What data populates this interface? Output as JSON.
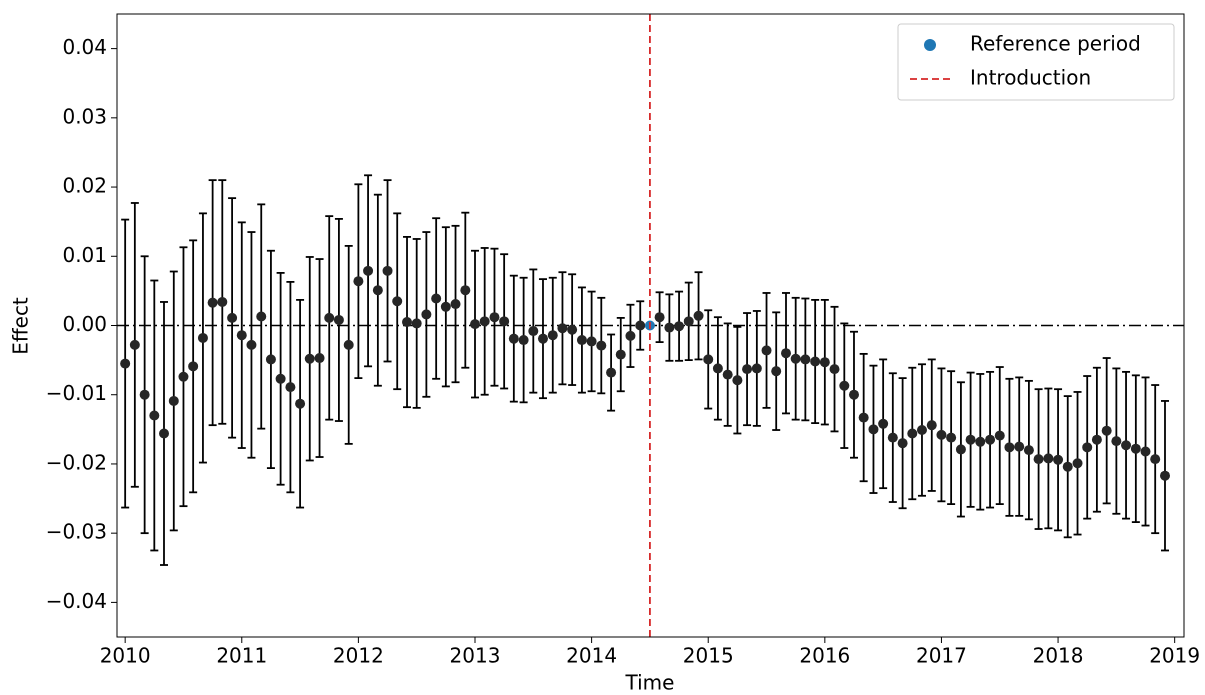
{
  "chart_data": {
    "type": "errorbar",
    "x_label": "Time",
    "y_label": "Effect",
    "xlim": [
      2009.93,
      2019.08
    ],
    "ylim": [
      -0.045,
      0.045
    ],
    "xticks": [
      2010,
      2011,
      2012,
      2013,
      2014,
      2015,
      2016,
      2017,
      2018,
      2019
    ],
    "yticks": [
      {
        "value": -0.04,
        "label": "−0.04"
      },
      {
        "value": -0.03,
        "label": "−0.03"
      },
      {
        "value": -0.02,
        "label": "−0.02"
      },
      {
        "value": -0.01,
        "label": "−0.01"
      },
      {
        "value": 0,
        "label": "0.00"
      },
      {
        "value": 0.01,
        "label": "0.01"
      },
      {
        "value": 0.02,
        "label": "0.02"
      },
      {
        "value": 0.03,
        "label": "0.03"
      },
      {
        "value": 0.04,
        "label": "0.04"
      }
    ],
    "legend_position": "upper right",
    "x": [
      2010.0,
      2010.083,
      2010.167,
      2010.25,
      2010.333,
      2010.417,
      2010.5,
      2010.583,
      2010.667,
      2010.75,
      2010.833,
      2010.917,
      2011.0,
      2011.083,
      2011.167,
      2011.25,
      2011.333,
      2011.417,
      2011.5,
      2011.583,
      2011.667,
      2011.75,
      2011.833,
      2011.917,
      2012.0,
      2012.083,
      2012.167,
      2012.25,
      2012.333,
      2012.417,
      2012.5,
      2012.583,
      2012.667,
      2012.75,
      2012.833,
      2012.917,
      2013.0,
      2013.083,
      2013.167,
      2013.25,
      2013.333,
      2013.417,
      2013.5,
      2013.583,
      2013.667,
      2013.75,
      2013.833,
      2013.917,
      2014.0,
      2014.083,
      2014.167,
      2014.25,
      2014.333,
      2014.417,
      2014.5,
      2014.583,
      2014.667,
      2014.75,
      2014.833,
      2014.917,
      2015.0,
      2015.083,
      2015.167,
      2015.25,
      2015.333,
      2015.417,
      2015.5,
      2015.583,
      2015.667,
      2015.75,
      2015.833,
      2015.917,
      2016.0,
      2016.083,
      2016.167,
      2016.25,
      2016.333,
      2016.417,
      2016.5,
      2016.583,
      2016.667,
      2016.75,
      2016.833,
      2016.917,
      2017.0,
      2017.083,
      2017.167,
      2017.25,
      2017.333,
      2017.417,
      2017.5,
      2017.583,
      2017.667,
      2017.75,
      2017.833,
      2017.917,
      2018.0,
      2018.083,
      2018.167,
      2018.25,
      2018.333,
      2018.417,
      2018.5,
      2018.583,
      2018.667,
      2018.75,
      2018.833,
      2018.917
    ],
    "series": [
      {
        "color": "#262626",
        "values": [
          -0.0055,
          -0.0028,
          -0.01,
          -0.013,
          -0.0156,
          -0.0109,
          -0.0074,
          -0.0059,
          -0.0018,
          0.0033,
          0.0034,
          0.0011,
          -0.0014,
          -0.0028,
          0.0013,
          -0.0049,
          -0.0077,
          -0.0089,
          -0.0113,
          -0.0048,
          -0.0047,
          0.0011,
          0.0008,
          -0.0028,
          0.0064,
          0.0079,
          0.0051,
          0.0079,
          0.0035,
          0.0005,
          0.0003,
          0.0016,
          0.0039,
          0.0027,
          0.0031,
          0.0051,
          0.0002,
          0.0006,
          0.0012,
          0.0006,
          -0.0019,
          -0.0021,
          -0.0008,
          -0.0019,
          -0.0014,
          -0.0004,
          -0.0006,
          -0.0021,
          -0.0023,
          -0.0029,
          -0.0068,
          -0.0042,
          -0.0015,
          0.0,
          null,
          0.0012,
          -0.0003,
          -0.0001,
          0.0006,
          0.0014,
          -0.0049,
          -0.0062,
          -0.0071,
          -0.0079,
          -0.0063,
          -0.0062,
          -0.0036,
          -0.0066,
          -0.004,
          -0.0048,
          -0.0049,
          -0.0052,
          -0.0053,
          -0.0063,
          -0.0087,
          -0.01,
          -0.0133,
          -0.015,
          -0.0142,
          -0.0162,
          -0.017,
          -0.0156,
          -0.0151,
          -0.0144,
          -0.0158,
          -0.0162,
          -0.0179,
          -0.0165,
          -0.0168,
          -0.0165,
          -0.0159,
          -0.0176,
          -0.0175,
          -0.018,
          -0.0193,
          -0.0192,
          -0.0194,
          -0.0204,
          -0.0199,
          -0.0176,
          -0.0165,
          -0.0152,
          -0.0167,
          -0.0173,
          -0.0178,
          -0.0182,
          -0.0193,
          -0.0217
        ],
        "errors": [
          0.0208,
          0.0205,
          0.02,
          0.0195,
          0.019,
          0.0187,
          0.0187,
          0.0182,
          0.018,
          0.0177,
          0.0176,
          0.0173,
          0.0163,
          0.0163,
          0.0162,
          0.0157,
          0.0153,
          0.0152,
          0.015,
          0.0147,
          0.0143,
          0.0147,
          0.0146,
          0.0143,
          0.014,
          0.0138,
          0.0138,
          0.0131,
          0.0127,
          0.0123,
          0.0122,
          0.0119,
          0.0116,
          0.0115,
          0.0113,
          0.0112,
          0.0106,
          0.0106,
          0.0099,
          0.0097,
          0.0091,
          0.009,
          0.0089,
          0.0086,
          0.0083,
          0.0081,
          0.008,
          0.0076,
          0.0072,
          0.0069,
          0.0055,
          0.0053,
          0.0045,
          0.0035,
          null,
          0.0036,
          0.0048,
          0.005,
          0.0056,
          0.0063,
          0.0071,
          0.0074,
          0.0074,
          0.0077,
          0.0081,
          0.0083,
          0.0083,
          0.0085,
          0.0087,
          0.0088,
          0.0088,
          0.0089,
          0.009,
          0.009,
          0.009,
          0.0091,
          0.0092,
          0.0092,
          0.0093,
          0.0093,
          0.0094,
          0.0095,
          0.0095,
          0.0095,
          0.0096,
          0.0096,
          0.0097,
          0.0097,
          0.0098,
          0.0098,
          0.0099,
          0.0099,
          0.01,
          0.01,
          0.0101,
          0.0101,
          0.0102,
          0.0102,
          0.0103,
          0.0103,
          0.0104,
          0.0105,
          0.0105,
          0.0106,
          0.0106,
          0.0107,
          0.0107,
          0.0108
        ]
      },
      {
        "name": "Reference period",
        "color": "#1f77b4",
        "x": [
          2014.5
        ],
        "values": [
          0
        ]
      }
    ],
    "vlines": [
      {
        "x": 2014.5,
        "name": "Introduction",
        "color": "#d62728",
        "style": "dashed"
      }
    ],
    "hlines": [
      {
        "y": 0,
        "color": "#000000",
        "style": "dashdot"
      }
    ]
  }
}
